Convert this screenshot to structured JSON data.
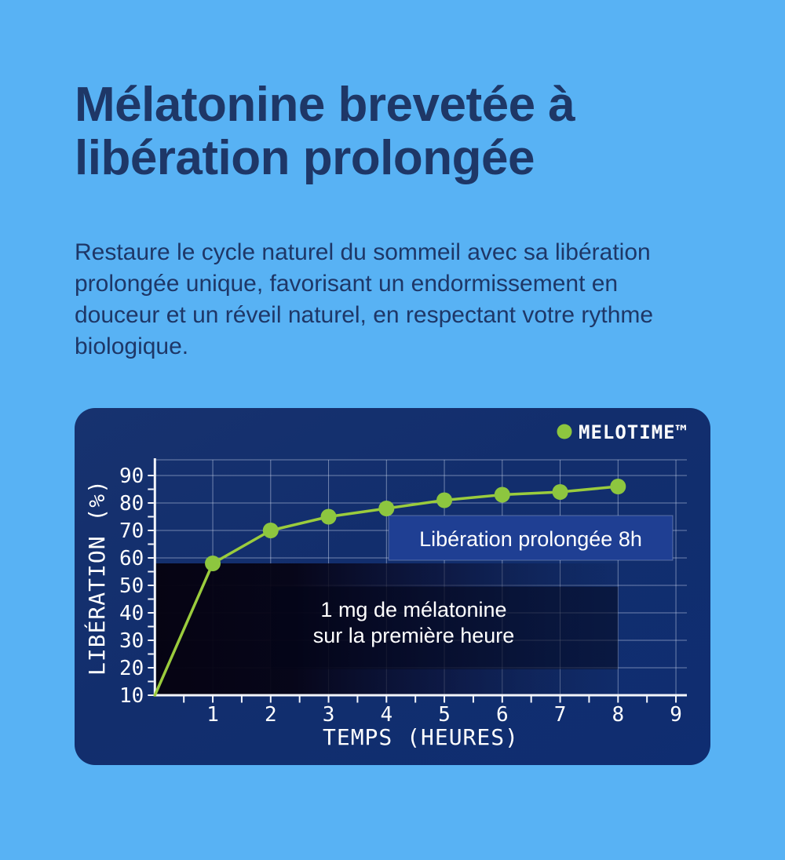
{
  "colors": {
    "page_bg": "#58b2f4",
    "heading_text": "#1e3767",
    "card_bg": "#122e6d",
    "line": "#9bcc3d",
    "marker": "#8dc63f",
    "grid": "rgba(208,218,240,0.5)",
    "axis": "#f4f6fb",
    "release_box_fill": "#1f3f93",
    "shade_dark": "#050210"
  },
  "hero": {
    "title_lines": [
      "Mélatonine brevetée à",
      "libération prolongée"
    ],
    "description_lines": [
      "Restaure le cycle naturel du sommeil avec sa libération",
      "prolongée unique, favorisant un endormissement en",
      "douceur et un réveil naturel, en respectant votre rythme",
      "biologique."
    ]
  },
  "chart_data": {
    "type": "line",
    "legend": [
      {
        "name": "MELOTIME™",
        "color": "#8dc63f"
      }
    ],
    "legend_position": "top-right",
    "x": [
      0,
      1,
      2,
      3,
      4,
      5,
      6,
      7,
      8
    ],
    "series": [
      {
        "name": "MELOTIME™",
        "values": [
          10,
          58,
          70,
          75,
          78,
          81,
          83,
          84,
          86
        ]
      }
    ],
    "xlabel": "TEMPS (HEURES)",
    "ylabel": "LIBÉRATION (%)",
    "x_ticks": [
      1,
      2,
      3,
      4,
      5,
      6,
      7,
      8,
      9
    ],
    "y_ticks": [
      10,
      20,
      30,
      40,
      50,
      60,
      70,
      80,
      90
    ],
    "x_minor_tick_step": 0.5,
    "y_minor_tick_step": 5,
    "xlim": [
      0,
      9.2
    ],
    "ylim": [
      10,
      96
    ],
    "grid": true,
    "regions": [
      {
        "id": "first-hour",
        "x": [
          0,
          8
        ],
        "y": [
          10,
          58
        ]
      },
      {
        "id": "dose-backdrop",
        "x": [
          2,
          8
        ],
        "y": [
          19.5,
          49.5
        ]
      }
    ],
    "annotations": [
      {
        "id": "release",
        "text": "Libération prolongée 8h"
      },
      {
        "id": "dose",
        "lines": [
          "1 mg de mélatonine",
          "sur la première heure"
        ]
      }
    ]
  }
}
